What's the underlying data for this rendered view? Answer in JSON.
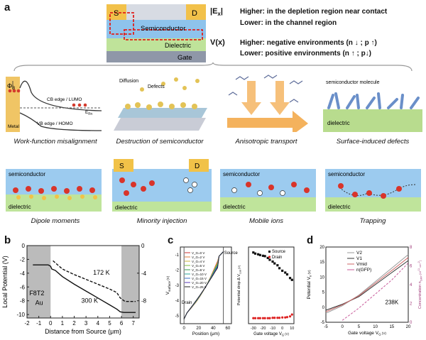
{
  "panel_a": {
    "label": "a",
    "device": {
      "source": "S",
      "drain": "D",
      "semiconductor": "Semiconductor",
      "dielectric": "Dielectric",
      "gate": "Gate"
    },
    "ex": {
      "symbol": "|E",
      "sub": "x",
      "symbol_end": "|",
      "higher": "Higher: in the depletion region near contact",
      "lower": "Lower: in the channel region"
    },
    "vx": {
      "symbol": "V(x)",
      "higher": "Higher: negative environments (n ↓ ;  p ↑)",
      "lower": "Lower: positive environments (n ↑ ;  p↓)"
    },
    "mech": {
      "wf": {
        "caption": "Work-function misalignment",
        "phi": "Φ",
        "phi_sub": "B",
        "cb": "CB edge / LUMO",
        "vb": "VB edge / HOMO",
        "ef": "E",
        "ef_sub": "Fn",
        "metal": "Metal"
      },
      "ds": {
        "caption": "Destruction of semiconductor",
        "diffusion": "Diffusion",
        "defects": "Defects"
      },
      "at": {
        "caption": "Anisotropic transport"
      },
      "sd": {
        "caption": "Surface-induced defects",
        "molecule": "semiconductor molecule",
        "dielectric": "dielectric"
      },
      "dm": {
        "caption": "Dipole moments",
        "semi": "semiconductor",
        "diel": "dielectric"
      },
      "mi": {
        "caption": "Minority injection",
        "s": "S",
        "d": "D",
        "diel": "dielectric"
      },
      "mo": {
        "caption": "Mobile ions",
        "semi": "semiconductor",
        "diel": "dielectric"
      },
      "tr": {
        "caption": "Trapping",
        "semi": "semiconductor",
        "diel": "dielectric"
      }
    }
  },
  "panel_b": {
    "label": "b",
    "ylabel": "Local Potential (V)",
    "xlabel": "Distance from Source (μm)",
    "material": "F8T2",
    "electrode": "Au",
    "label_172": "172 K",
    "label_300": "300 K"
  },
  "panel_c": {
    "label": "c",
    "left_ylabel": "V",
    "left_ylabel_sub": "surface",
    "left_ylabel_end": " (V)",
    "left_xlabel": "Position (μm)",
    "source": "Source",
    "drain": "Drain",
    "right_ylabel": "Potential drop Δ V",
    "right_ylabel_sub": "con",
    "right_ylabel_end": " (V)",
    "right_xlabel": "Gate voltage V",
    "right_xlabel_sub": "G",
    "right_xlabel_end": " (V)",
    "legend_source": "Source",
    "legend_drain": "Drain"
  },
  "panel_d": {
    "label": "d",
    "ylabel": "Potential V",
    "ylabel_sub": "x",
    "ylabel_end": " (V)",
    "xlabel": "Gate voltage V",
    "xlabel_sub": "G",
    "xlabel_end": " (V)",
    "y2label": "Concentration n",
    "y2label_sub": "GFP",
    "y2label_end": " (10",
    "y2label_sup": "11",
    "y2label_end2": " cm",
    "y2label_sup2": "-2",
    "y2label_end3": ")",
    "temp": "238K",
    "legend": [
      "V2",
      "V1",
      "Vmid",
      "n(GFP)"
    ]
  },
  "chart_data": [
    {
      "type": "line",
      "panel": "b",
      "xlabel": "Distance from Source (μm)",
      "ylabel": "Local Potential (V)",
      "xlim": [
        -2,
        7.5
      ],
      "ylim": [
        -10.5,
        0
      ],
      "y2lim": [
        -10.5,
        0
      ],
      "xticks": [
        -2,
        -1,
        0,
        1,
        2,
        3,
        4,
        5,
        6,
        7
      ],
      "yticks": [
        0,
        -2,
        -4,
        -6,
        -8,
        -10
      ],
      "y2ticks": [
        0,
        -4,
        -8
      ],
      "series": [
        {
          "name": "300 K",
          "style": "solid",
          "x": [
            -1.5,
            -0.8,
            -0.2,
            0.0,
            0.1,
            0.4,
            1,
            2,
            3,
            4,
            5,
            5.6,
            5.9,
            6.2,
            7.2
          ],
          "y": [
            -2.8,
            -2.8,
            -2.8,
            -3.0,
            -3.4,
            -3.6,
            -4.5,
            -5.6,
            -6.6,
            -7.6,
            -8.6,
            -9.2,
            -9.6,
            -9.7,
            -9.7
          ]
        },
        {
          "name": "172 K",
          "style": "dashed",
          "x": [
            0.2,
            1,
            2,
            3,
            4,
            5,
            5.6,
            5.9,
            6.3,
            7.2
          ],
          "y": [
            -2.2,
            -3.4,
            -4.2,
            -4.9,
            -5.6,
            -6.3,
            -6.8,
            -7.6,
            -8.1,
            -8.1
          ]
        }
      ]
    },
    {
      "type": "line",
      "panel": "c-left",
      "xlabel": "Position (μm)",
      "ylabel": "V surface (V)",
      "xlim": [
        -5,
        65
      ],
      "ylim": [
        -5.5,
        -0.5
      ],
      "xticks": [
        0,
        20,
        40,
        60
      ],
      "yticks": [
        -1,
        -2,
        -3,
        -4,
        -5
      ],
      "legend_title": "",
      "series": [
        {
          "name": "V_G=0 V",
          "color": "#cc3333"
        },
        {
          "name": "V_G=2 V",
          "color": "#e07b39"
        },
        {
          "name": "V_G=4 V",
          "color": "#c8b43a"
        },
        {
          "name": "V_G=6 V",
          "color": "#7cbf3a"
        },
        {
          "name": "V_G=8 V",
          "color": "#2f9e4a"
        },
        {
          "name": "V_G=10 V",
          "color": "#2aa39a"
        },
        {
          "name": "V_G=15 V",
          "color": "#3a6fc8"
        },
        {
          "name": "V_G=20 V",
          "color": "#5a3ab8"
        },
        {
          "name": "V_G=25 V",
          "color": "#222222"
        }
      ]
    },
    {
      "type": "scatter",
      "panel": "c-right",
      "xlabel": "Gate voltage V G (V)",
      "ylabel": "Potential drop Δ V con (V)",
      "xlim": [
        -35,
        12
      ],
      "ylim": [
        0.3,
        2.4
      ],
      "xticks": [
        -30,
        -20,
        -10,
        0,
        10
      ],
      "series": [
        {
          "name": "Source",
          "marker": "square",
          "color": "#111111",
          "x": [
            -30,
            -28,
            -25,
            -23,
            -20,
            -18,
            -15,
            -13,
            -10,
            -8,
            -5,
            -3,
            0,
            3,
            5,
            8,
            10
          ],
          "y": [
            2.25,
            2.22,
            2.2,
            2.18,
            2.16,
            2.15,
            2.1,
            2.05,
            2.0,
            1.95,
            1.9,
            1.82,
            1.75,
            1.7,
            1.65,
            1.55,
            1.5
          ]
        },
        {
          "name": "Drain",
          "marker": "circle",
          "color": "#dd2222",
          "x": [
            -30,
            -28,
            -25,
            -23,
            -20,
            -18,
            -15,
            -13,
            -10,
            -8,
            -5,
            -3,
            0,
            3,
            5,
            8,
            10
          ],
          "y": [
            0.45,
            0.45,
            0.45,
            0.45,
            0.45,
            0.45,
            0.45,
            0.45,
            0.46,
            0.46,
            0.46,
            0.46,
            0.47,
            0.47,
            0.48,
            0.5,
            0.55
          ]
        }
      ]
    },
    {
      "type": "line",
      "panel": "d",
      "xlabel": "Gate voltage V G (V)",
      "ylabel": "Potential V x (V)",
      "xlim": [
        -5,
        20
      ],
      "ylim": [
        -5,
        20
      ],
      "xticks": [
        -5,
        0,
        5,
        10,
        15,
        20
      ],
      "yticks": [
        -5,
        0,
        5,
        10,
        15,
        20
      ],
      "y2lim": [
        0,
        8
      ],
      "y2ticks": [
        0,
        2,
        4,
        6,
        8
      ],
      "series": [
        {
          "name": "V2",
          "color": "#999999",
          "x": [
            -5,
            0,
            5,
            10,
            15,
            20
          ],
          "y": [
            -2,
            0.5,
            4,
            8.5,
            13,
            17.5
          ]
        },
        {
          "name": "V1",
          "color": "#333333",
          "x": [
            -5,
            0,
            5,
            10,
            15,
            20
          ],
          "y": [
            -1,
            1,
            3.5,
            7.5,
            11.5,
            15.5
          ]
        },
        {
          "name": "Vmid",
          "color": "#cc6666",
          "x": [
            -5,
            0,
            5,
            10,
            15,
            20
          ],
          "y": [
            -1.5,
            0.8,
            3.8,
            8,
            12.2,
            16.5
          ]
        },
        {
          "name": "n(GFP)",
          "color": "#c85a9a",
          "axis": "right",
          "x": [
            0,
            5,
            10,
            15,
            20
          ],
          "y": [
            0.2,
            1.5,
            3.0,
            4.5,
            6.3
          ]
        }
      ]
    }
  ]
}
